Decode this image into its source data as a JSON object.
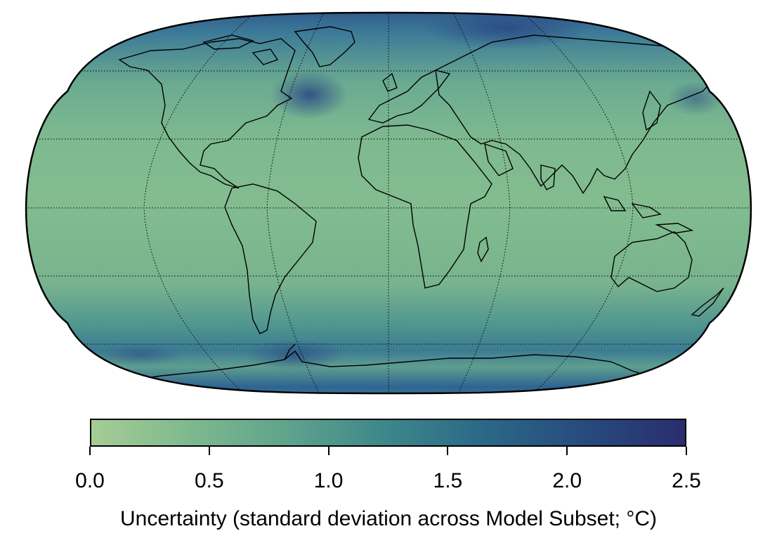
{
  "map": {
    "projection": "Robinson",
    "graticule": "dotted",
    "coastlines": true,
    "field": "uncertainty"
  },
  "colorbar": {
    "min": 0.0,
    "max": 2.5,
    "ticks": [
      "0.0",
      "0.5",
      "1.0",
      "1.5",
      "2.0",
      "2.5"
    ],
    "label": "Uncertainty (standard deviation across Model Subset; °C)",
    "colormap": [
      "#a6cd95",
      "#7db98e",
      "#5ea38c",
      "#3d868a",
      "#2a6787",
      "#274a7d",
      "#2a2d6e"
    ]
  }
}
